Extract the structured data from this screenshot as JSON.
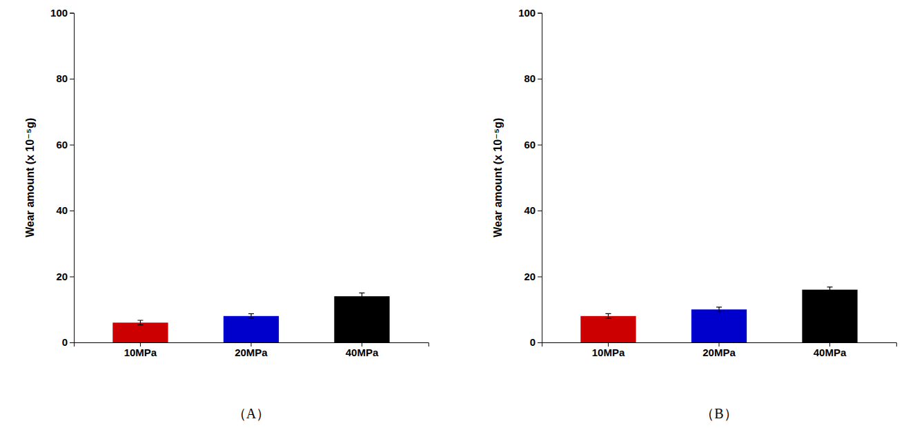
{
  "chart_data": [
    {
      "type": "bar",
      "title": "（A）",
      "categories": [
        "10MPa",
        "20MPa",
        "40MPa"
      ],
      "values": [
        6.0,
        8.0,
        14.0
      ],
      "errors": [
        0.7,
        0.7,
        1.0
      ],
      "colors": [
        "#cc0000",
        "#0000cc",
        "#000000"
      ],
      "y_label": "Wear amount (x 10⁻⁵g)",
      "ylim": [
        0,
        100
      ],
      "yticks": [
        0,
        20,
        40,
        60,
        80,
        100
      ],
      "grid": false
    },
    {
      "type": "bar",
      "title": "（B）",
      "categories": [
        "10MPa",
        "20MPa",
        "40MPa"
      ],
      "values": [
        8.0,
        10.0,
        16.0
      ],
      "errors": [
        0.7,
        0.7,
        0.8
      ],
      "colors": [
        "#cc0000",
        "#0000cc",
        "#000000"
      ],
      "y_label": "Wear amount (x 10⁻⁵g)",
      "ylim": [
        0,
        100
      ],
      "yticks": [
        0,
        20,
        40,
        60,
        80,
        100
      ],
      "grid": false
    }
  ]
}
